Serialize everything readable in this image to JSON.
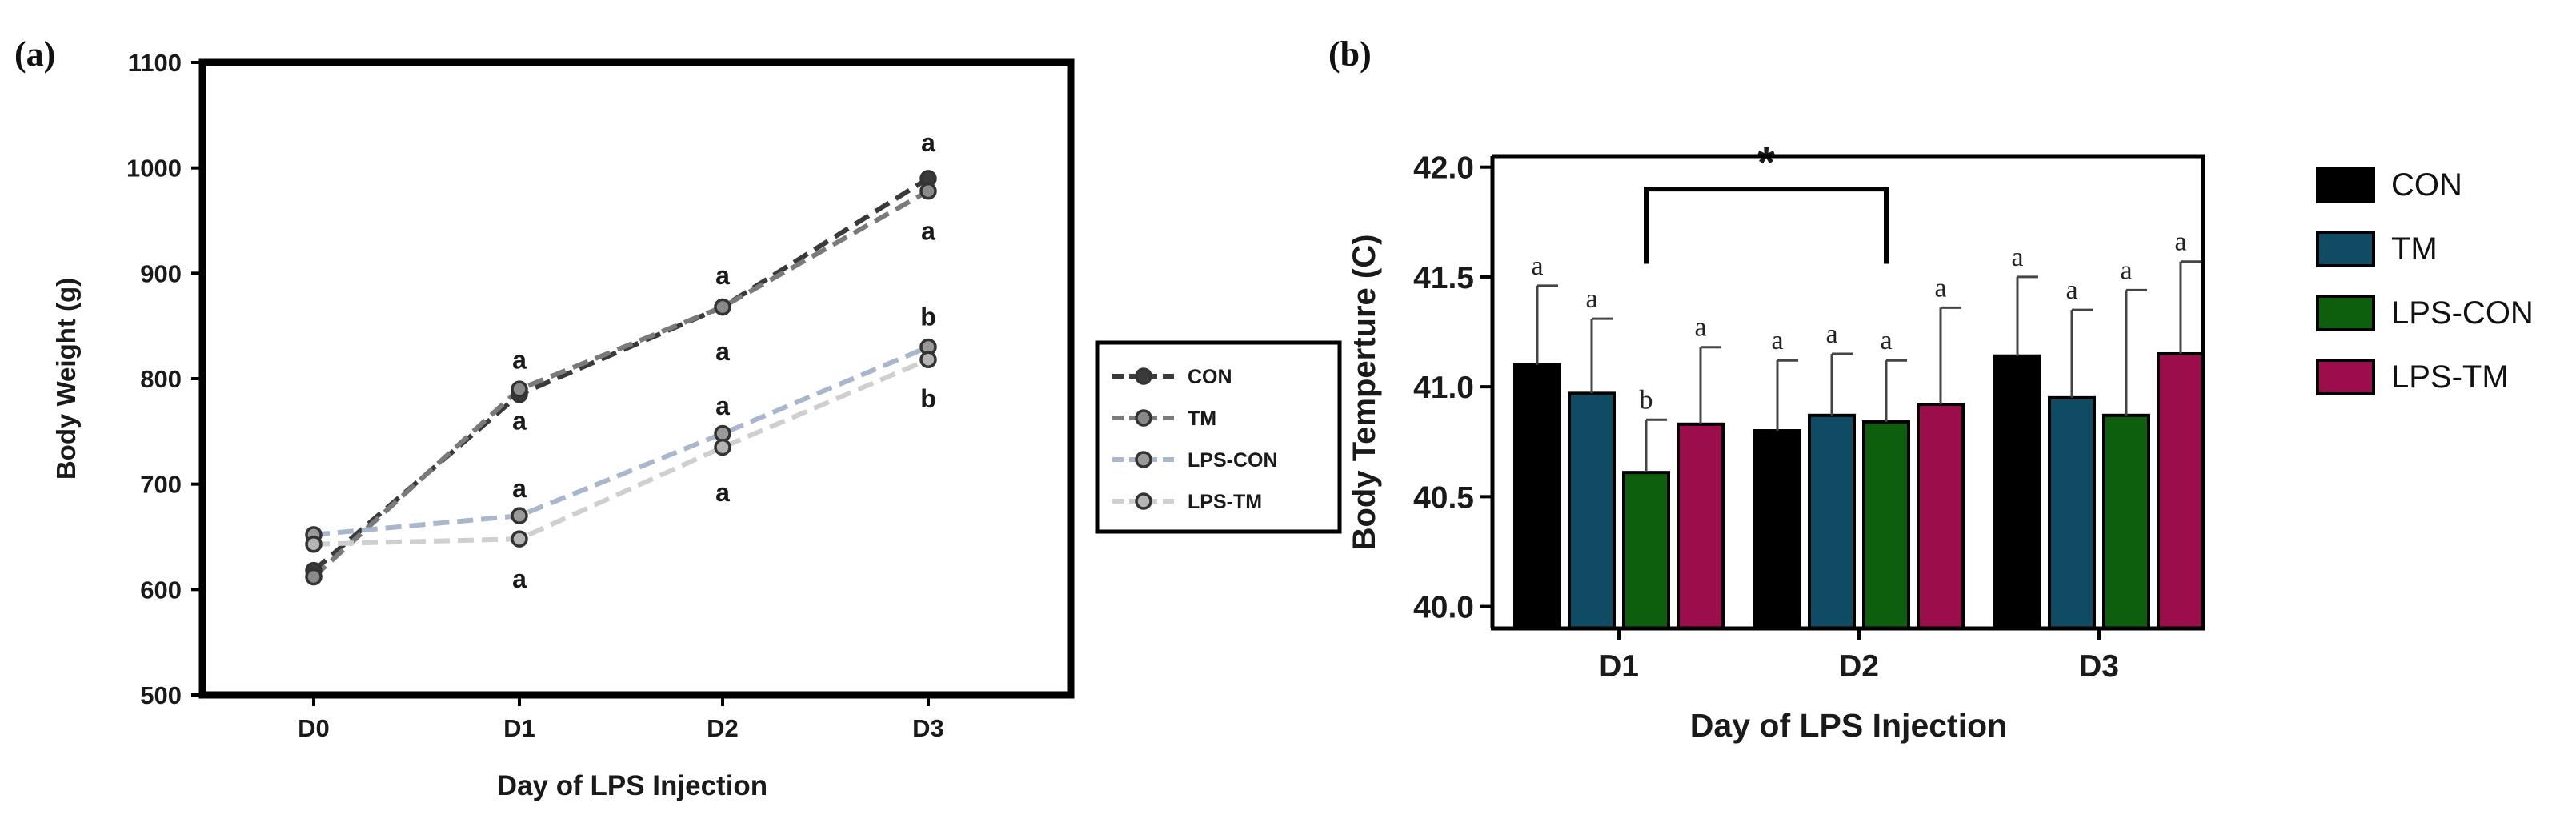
{
  "chart_data": [
    {
      "panel": "(a)",
      "type": "line",
      "xlabel": "Day of LPS Injection",
      "ylabel": "Body Weight (g)",
      "categories": [
        "D0",
        "D1",
        "D2",
        "D3"
      ],
      "ylim": [
        500,
        1100
      ],
      "yticks": [
        500,
        600,
        700,
        800,
        900,
        1000,
        1100
      ],
      "legend_position": "right",
      "series": [
        {
          "name": "CON",
          "color": "#3a3a3a",
          "marker_fill": "#3a3a3a",
          "values": [
            618,
            785,
            868,
            990
          ]
        },
        {
          "name": "TM",
          "color": "#7a7a7a",
          "marker_fill": "#8a8a8a",
          "values": [
            612,
            790,
            868,
            978
          ]
        },
        {
          "name": "LPS-CON",
          "color": "#a9b7cc",
          "marker_fill": "#9a9a9a",
          "values": [
            652,
            670,
            748,
            830
          ]
        },
        {
          "name": "LPS-TM",
          "color": "#cfcfcf",
          "marker_fill": "#b5b5b5",
          "values": [
            643,
            648,
            735,
            818
          ]
        }
      ],
      "annotations": [
        {
          "category": "D1",
          "y": 818,
          "text": "a"
        },
        {
          "category": "D1",
          "y": 760,
          "text": "a"
        },
        {
          "category": "D1",
          "y": 696,
          "text": "a"
        },
        {
          "category": "D1",
          "y": 610,
          "text": "a"
        },
        {
          "category": "D2",
          "y": 898,
          "text": "a"
        },
        {
          "category": "D2",
          "y": 826,
          "text": "a"
        },
        {
          "category": "D2",
          "y": 774,
          "text": "a"
        },
        {
          "category": "D2",
          "y": 692,
          "text": "a"
        },
        {
          "category": "D3",
          "y": 1024,
          "text": "a"
        },
        {
          "category": "D3",
          "y": 940,
          "text": "a"
        },
        {
          "category": "D3",
          "y": 859,
          "text": "b"
        },
        {
          "category": "D3",
          "y": 781,
          "text": "b"
        }
      ]
    },
    {
      "panel": "(b)",
      "type": "bar",
      "xlabel": "Day of LPS Injection",
      "ylabel": "Body Temperture (C)",
      "categories": [
        "D1",
        "D2",
        "D3"
      ],
      "ylim": [
        39.9,
        42.05
      ],
      "yticks": [
        40.0,
        40.5,
        41.0,
        41.5,
        42.0
      ],
      "ytick_labels": [
        "40.0",
        "40.5",
        "41.0",
        "41.5",
        "42.0"
      ],
      "legend_position": "right",
      "series": [
        {
          "name": "CON",
          "color": "#000000",
          "values": [
            41.1,
            40.8,
            41.14
          ],
          "errors": [
            0.36,
            0.32,
            0.36
          ],
          "letters": [
            "a",
            "a",
            "a"
          ]
        },
        {
          "name": "TM",
          "color": "#0f4c63",
          "values": [
            40.97,
            40.87,
            40.95
          ],
          "errors": [
            0.34,
            0.28,
            0.4
          ],
          "letters": [
            "a",
            "a",
            "a"
          ]
        },
        {
          "name": "LPS-CON",
          "color": "#0d5e0d",
          "values": [
            40.61,
            40.84,
            40.87
          ],
          "errors": [
            0.24,
            0.28,
            0.57
          ],
          "letters": [
            "b",
            "a",
            "a"
          ]
        },
        {
          "name": "LPS-TM",
          "color": "#9b0d4b",
          "values": [
            40.83,
            40.92,
            41.15
          ],
          "errors": [
            0.35,
            0.44,
            0.42
          ],
          "letters": [
            "a",
            "a",
            "a"
          ]
        }
      ],
      "significance": {
        "from": {
          "category": "D1",
          "series": "LPS-CON"
        },
        "to": {
          "category": "D2",
          "series": "LPS-CON"
        },
        "y": 41.9,
        "text": "*"
      }
    }
  ]
}
